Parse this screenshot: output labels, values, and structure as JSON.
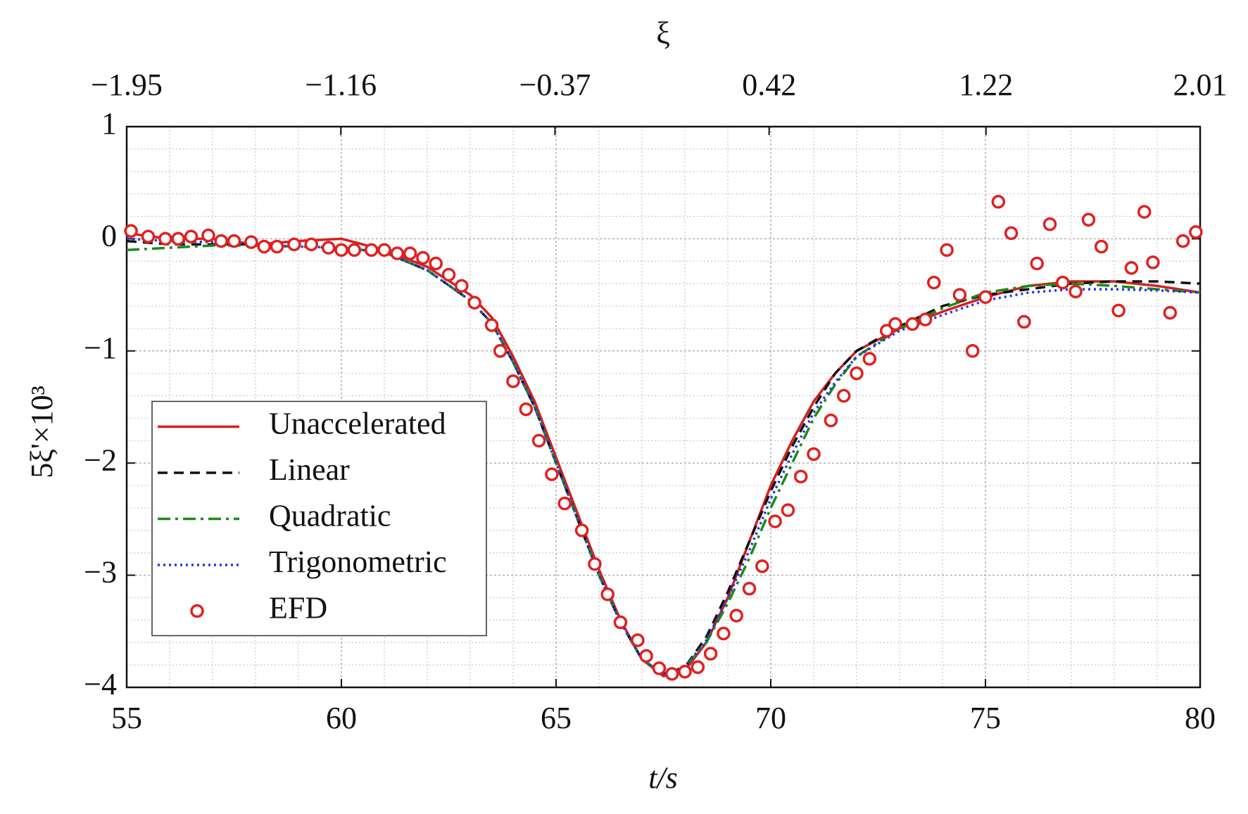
{
  "chart_data": {
    "type": "line",
    "x2label": "ξ",
    "xlabel": "t/s",
    "ylabel": "5ξ'×10³",
    "xlim": [
      55,
      80
    ],
    "xticks": [
      55,
      60,
      65,
      70,
      75,
      80
    ],
    "x2lim": [
      -1.95,
      2.01
    ],
    "x2ticks": [
      {
        "value": -1.95,
        "label": "−1.95"
      },
      {
        "value": -1.16,
        "label": "−1.16"
      },
      {
        "value": -0.37,
        "label": "−0.37"
      },
      0.42,
      1.22,
      2.01
    ],
    "ylim": [
      -4,
      1
    ],
    "yticks": [
      {
        "value": -4,
        "label": "−4"
      },
      {
        "value": -3,
        "label": "−3"
      },
      {
        "value": -2,
        "label": "−2"
      },
      {
        "value": -1,
        "label": "−1"
      },
      0,
      1
    ],
    "grid": true,
    "legend": "center left",
    "x": [
      55,
      56,
      57,
      58,
      59,
      60,
      61,
      62,
      63,
      63.5,
      64,
      64.5,
      65,
      65.5,
      66,
      66.5,
      67,
      67.5,
      68,
      68.5,
      69,
      69.5,
      70,
      70.5,
      71,
      71.5,
      72,
      73,
      74,
      75,
      76,
      77,
      78,
      79,
      80
    ],
    "series": [
      {
        "name": "Unaccelerated",
        "color": "#d42020",
        "style": "solid",
        "values": [
          0.05,
          0.0,
          0.0,
          -0.05,
          -0.02,
          0.0,
          -0.1,
          -0.25,
          -0.5,
          -0.7,
          -1.05,
          -1.45,
          -1.95,
          -2.45,
          -2.95,
          -3.4,
          -3.75,
          -3.9,
          -3.85,
          -3.6,
          -3.2,
          -2.7,
          -2.2,
          -1.8,
          -1.45,
          -1.2,
          -1.0,
          -0.8,
          -0.65,
          -0.52,
          -0.42,
          -0.38,
          -0.38,
          -0.42,
          -0.48
        ]
      },
      {
        "name": "Linear",
        "color": "#111111",
        "style": "dashed",
        "values": [
          -0.02,
          -0.05,
          -0.05,
          -0.05,
          -0.07,
          -0.08,
          -0.12,
          -0.28,
          -0.55,
          -0.75,
          -1.1,
          -1.5,
          -2.0,
          -2.5,
          -3.0,
          -3.42,
          -3.75,
          -3.88,
          -3.82,
          -3.55,
          -3.15,
          -2.7,
          -2.25,
          -1.85,
          -1.5,
          -1.2,
          -1.0,
          -0.78,
          -0.6,
          -0.5,
          -0.45,
          -0.4,
          -0.38,
          -0.38,
          -0.4
        ]
      },
      {
        "name": "Quadratic",
        "color": "#1a8a1a",
        "style": "dashdot",
        "values": [
          -0.1,
          -0.08,
          -0.06,
          -0.06,
          -0.07,
          -0.08,
          -0.12,
          -0.28,
          -0.55,
          -0.75,
          -1.1,
          -1.5,
          -2.0,
          -2.5,
          -3.0,
          -3.42,
          -3.75,
          -3.88,
          -3.82,
          -3.6,
          -3.25,
          -2.85,
          -2.4,
          -2.0,
          -1.6,
          -1.3,
          -1.05,
          -0.8,
          -0.62,
          -0.48,
          -0.42,
          -0.4,
          -0.42,
          -0.45,
          -0.48
        ]
      },
      {
        "name": "Trigonometric",
        "color": "#2233ee",
        "style": "dotted",
        "values": [
          0.0,
          -0.02,
          -0.03,
          -0.05,
          -0.07,
          -0.08,
          -0.12,
          -0.28,
          -0.55,
          -0.75,
          -1.1,
          -1.5,
          -2.0,
          -2.5,
          -3.0,
          -3.42,
          -3.75,
          -3.88,
          -3.82,
          -3.58,
          -3.2,
          -2.78,
          -2.32,
          -1.92,
          -1.55,
          -1.28,
          -1.05,
          -0.82,
          -0.68,
          -0.55,
          -0.48,
          -0.45,
          -0.45,
          -0.46,
          -0.48
        ]
      },
      {
        "name": "EFD",
        "color": "#e02020",
        "type": "scatter",
        "x": [
          55.1,
          55.5,
          55.9,
          56.2,
          56.5,
          56.9,
          57.2,
          57.5,
          57.9,
          58.2,
          58.5,
          58.9,
          59.3,
          59.7,
          60.0,
          60.3,
          60.7,
          61.0,
          61.3,
          61.6,
          61.9,
          62.2,
          62.5,
          62.8,
          63.1,
          63.5,
          63.7,
          64.0,
          64.3,
          64.6,
          64.9,
          65.2,
          65.6,
          65.9,
          66.2,
          66.5,
          66.9,
          67.1,
          67.4,
          67.7,
          68.0,
          68.3,
          68.6,
          68.9,
          69.2,
          69.5,
          69.8,
          70.1,
          70.4,
          70.7,
          71.0,
          71.4,
          71.7,
          72.0,
          72.3,
          72.7,
          72.9,
          73.3,
          73.6,
          73.8,
          74.1,
          74.4,
          74.7,
          75.0,
          75.3,
          75.6,
          75.9,
          76.2,
          76.5,
          76.8,
          77.1,
          77.4,
          77.7,
          78.1,
          78.4,
          78.7,
          78.9,
          79.3,
          79.6,
          79.9
        ],
        "values": [
          0.07,
          0.02,
          0.0,
          0.0,
          0.02,
          0.03,
          -0.02,
          -0.02,
          -0.03,
          -0.07,
          -0.07,
          -0.05,
          -0.05,
          -0.08,
          -0.1,
          -0.1,
          -0.1,
          -0.1,
          -0.13,
          -0.13,
          -0.17,
          -0.22,
          -0.32,
          -0.42,
          -0.57,
          -0.77,
          -1.0,
          -1.27,
          -1.52,
          -1.8,
          -2.1,
          -2.36,
          -2.6,
          -2.9,
          -3.17,
          -3.42,
          -3.58,
          -3.72,
          -3.83,
          -3.88,
          -3.86,
          -3.82,
          -3.7,
          -3.52,
          -3.36,
          -3.12,
          -2.92,
          -2.52,
          -2.42,
          -2.12,
          -1.92,
          -1.62,
          -1.4,
          -1.2,
          -1.07,
          -0.82,
          -0.76,
          -0.76,
          -0.72,
          -0.39,
          -0.1,
          -0.5,
          -1.0,
          -0.52,
          0.33,
          0.05,
          -0.74,
          -0.22,
          0.13,
          -0.39,
          -0.47,
          0.17,
          -0.07,
          -0.64,
          -0.26,
          0.24,
          -0.21,
          -0.66,
          -0.02,
          0.06
        ]
      }
    ]
  }
}
